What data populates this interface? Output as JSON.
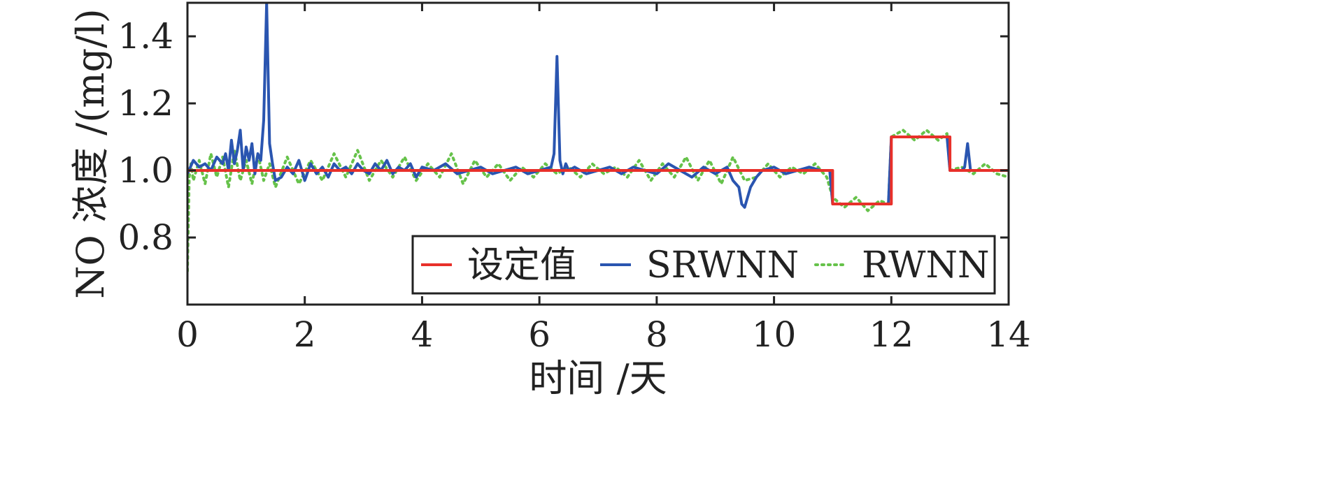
{
  "chart_data": {
    "type": "line",
    "xlabel": "时间 /天",
    "ylabel": "NO 浓度 /(mg/l)",
    "xlim": [
      0,
      14
    ],
    "ylim": [
      0.6,
      1.5
    ],
    "xticks": [
      0,
      2,
      4,
      6,
      8,
      10,
      12,
      14
    ],
    "xtick_labels": [
      "0",
      "2",
      "4",
      "6",
      "8",
      "10",
      "12",
      "14"
    ],
    "yticks": [
      0.8,
      1.0,
      1.2,
      1.4
    ],
    "ytick_labels": [
      "0.8",
      "1.0",
      "1.2",
      "1.4"
    ],
    "grid": false,
    "legend_position": "bottom-right",
    "series": [
      {
        "name": "设定值",
        "color": "#e8302a",
        "style": "solid",
        "x": [
          0,
          11,
          11,
          12,
          12,
          13,
          13,
          14
        ],
        "y": [
          1.0,
          1.0,
          0.9,
          0.9,
          1.1,
          1.1,
          1.0,
          1.0
        ]
      },
      {
        "name": "SRWNN",
        "color": "#2a55b0",
        "style": "solid",
        "x": [
          0,
          0.1,
          0.2,
          0.3,
          0.4,
          0.5,
          0.6,
          0.65,
          0.7,
          0.75,
          0.8,
          0.85,
          0.9,
          0.95,
          1.0,
          1.05,
          1.1,
          1.15,
          1.2,
          1.25,
          1.3,
          1.35,
          1.4,
          1.45,
          1.5,
          1.6,
          1.7,
          1.8,
          1.9,
          2.0,
          2.1,
          2.2,
          2.3,
          2.4,
          2.5,
          2.6,
          2.7,
          2.8,
          2.9,
          3.0,
          3.1,
          3.2,
          3.3,
          3.4,
          3.5,
          3.6,
          3.7,
          3.8,
          3.9,
          4.0,
          4.2,
          4.4,
          4.6,
          4.8,
          5.0,
          5.2,
          5.4,
          5.6,
          5.8,
          6.0,
          6.2,
          6.25,
          6.3,
          6.35,
          6.4,
          6.45,
          6.5,
          6.6,
          6.8,
          7.0,
          7.2,
          7.4,
          7.6,
          7.8,
          8.0,
          8.2,
          8.4,
          8.6,
          8.8,
          9.0,
          9.2,
          9.3,
          9.4,
          9.45,
          9.5,
          9.6,
          9.7,
          9.8,
          10.0,
          10.2,
          10.4,
          10.6,
          10.8,
          10.95,
          11.0,
          11.2,
          11.5,
          11.8,
          11.95,
          12.0,
          12.3,
          12.6,
          12.95,
          13.0,
          13.2,
          13.25,
          13.3,
          13.35,
          13.5,
          13.7,
          14.0
        ],
        "y": [
          0.99,
          1.03,
          1.01,
          1.02,
          1.0,
          1.04,
          1.02,
          1.05,
          1.0,
          1.09,
          1.02,
          1.06,
          1.12,
          1.0,
          1.07,
          1.03,
          1.08,
          0.99,
          1.05,
          1.03,
          1.15,
          1.5,
          1.08,
          1.02,
          0.97,
          0.98,
          1.01,
          0.99,
          1.03,
          0.97,
          1.02,
          0.99,
          1.01,
          0.98,
          1.02,
          1.0,
          1.01,
          0.99,
          1.02,
          1.0,
          0.99,
          1.02,
          1.0,
          1.03,
          0.99,
          1.01,
          1.0,
          1.02,
          0.98,
          1.01,
          1.0,
          1.02,
          0.99,
          1.0,
          1.01,
          0.99,
          1.0,
          1.01,
          0.99,
          1.0,
          1.01,
          1.05,
          1.34,
          1.03,
          0.99,
          1.02,
          1.0,
          1.01,
          0.99,
          1.0,
          1.01,
          0.99,
          1.01,
          1.0,
          0.99,
          1.02,
          1.0,
          0.98,
          1.01,
          0.99,
          1.01,
          0.97,
          0.95,
          0.9,
          0.89,
          0.95,
          0.98,
          1.0,
          1.01,
          0.99,
          1.0,
          1.01,
          1.0,
          1.0,
          0.9,
          0.9,
          0.9,
          0.9,
          0.9,
          1.1,
          1.1,
          1.1,
          1.1,
          1.0,
          1.0,
          1.01,
          1.08,
          1.0,
          1.0,
          1.0,
          1.0
        ]
      },
      {
        "name": "RWNN",
        "color": "#66c24a",
        "style": "dotted",
        "x": [
          0,
          0.03,
          0.06,
          0.1,
          0.2,
          0.3,
          0.4,
          0.5,
          0.6,
          0.7,
          0.8,
          0.9,
          1.0,
          1.1,
          1.2,
          1.3,
          1.4,
          1.5,
          1.7,
          1.9,
          2.1,
          2.3,
          2.5,
          2.7,
          2.9,
          3.1,
          3.3,
          3.5,
          3.7,
          3.9,
          4.1,
          4.3,
          4.5,
          4.7,
          4.9,
          5.1,
          5.3,
          5.5,
          5.7,
          5.9,
          6.1,
          6.3,
          6.5,
          6.7,
          6.9,
          7.1,
          7.3,
          7.5,
          7.7,
          7.9,
          8.1,
          8.3,
          8.5,
          8.7,
          8.9,
          9.1,
          9.3,
          9.5,
          9.7,
          9.9,
          10.1,
          10.3,
          10.5,
          10.7,
          10.9,
          11.0,
          11.2,
          11.4,
          11.6,
          11.8,
          11.95,
          12.0,
          12.2,
          12.4,
          12.6,
          12.8,
          12.95,
          13.0,
          13.2,
          13.4,
          13.6,
          13.8,
          14.0
        ],
        "y": [
          0.7,
          0.98,
          1.02,
          0.97,
          1.03,
          0.96,
          1.05,
          0.98,
          1.04,
          0.95,
          1.06,
          0.97,
          1.03,
          0.96,
          1.05,
          0.97,
          1.02,
          0.95,
          1.04,
          0.96,
          1.03,
          0.97,
          1.05,
          0.98,
          1.06,
          0.97,
          1.03,
          0.98,
          1.04,
          0.97,
          1.02,
          0.98,
          1.05,
          0.96,
          1.03,
          0.98,
          1.02,
          0.97,
          1.01,
          0.98,
          1.02,
          0.99,
          1.01,
          0.98,
          1.02,
          0.99,
          1.01,
          0.98,
          1.03,
          0.97,
          1.02,
          0.98,
          1.04,
          0.97,
          1.03,
          0.96,
          1.04,
          0.97,
          0.98,
          1.02,
          0.98,
          1.01,
          0.99,
          1.02,
          0.98,
          0.92,
          0.89,
          0.92,
          0.88,
          0.91,
          0.9,
          1.1,
          1.12,
          1.09,
          1.12,
          1.09,
          1.11,
          1.0,
          1.01,
          0.99,
          1.02,
          0.99,
          0.98
        ]
      }
    ]
  }
}
